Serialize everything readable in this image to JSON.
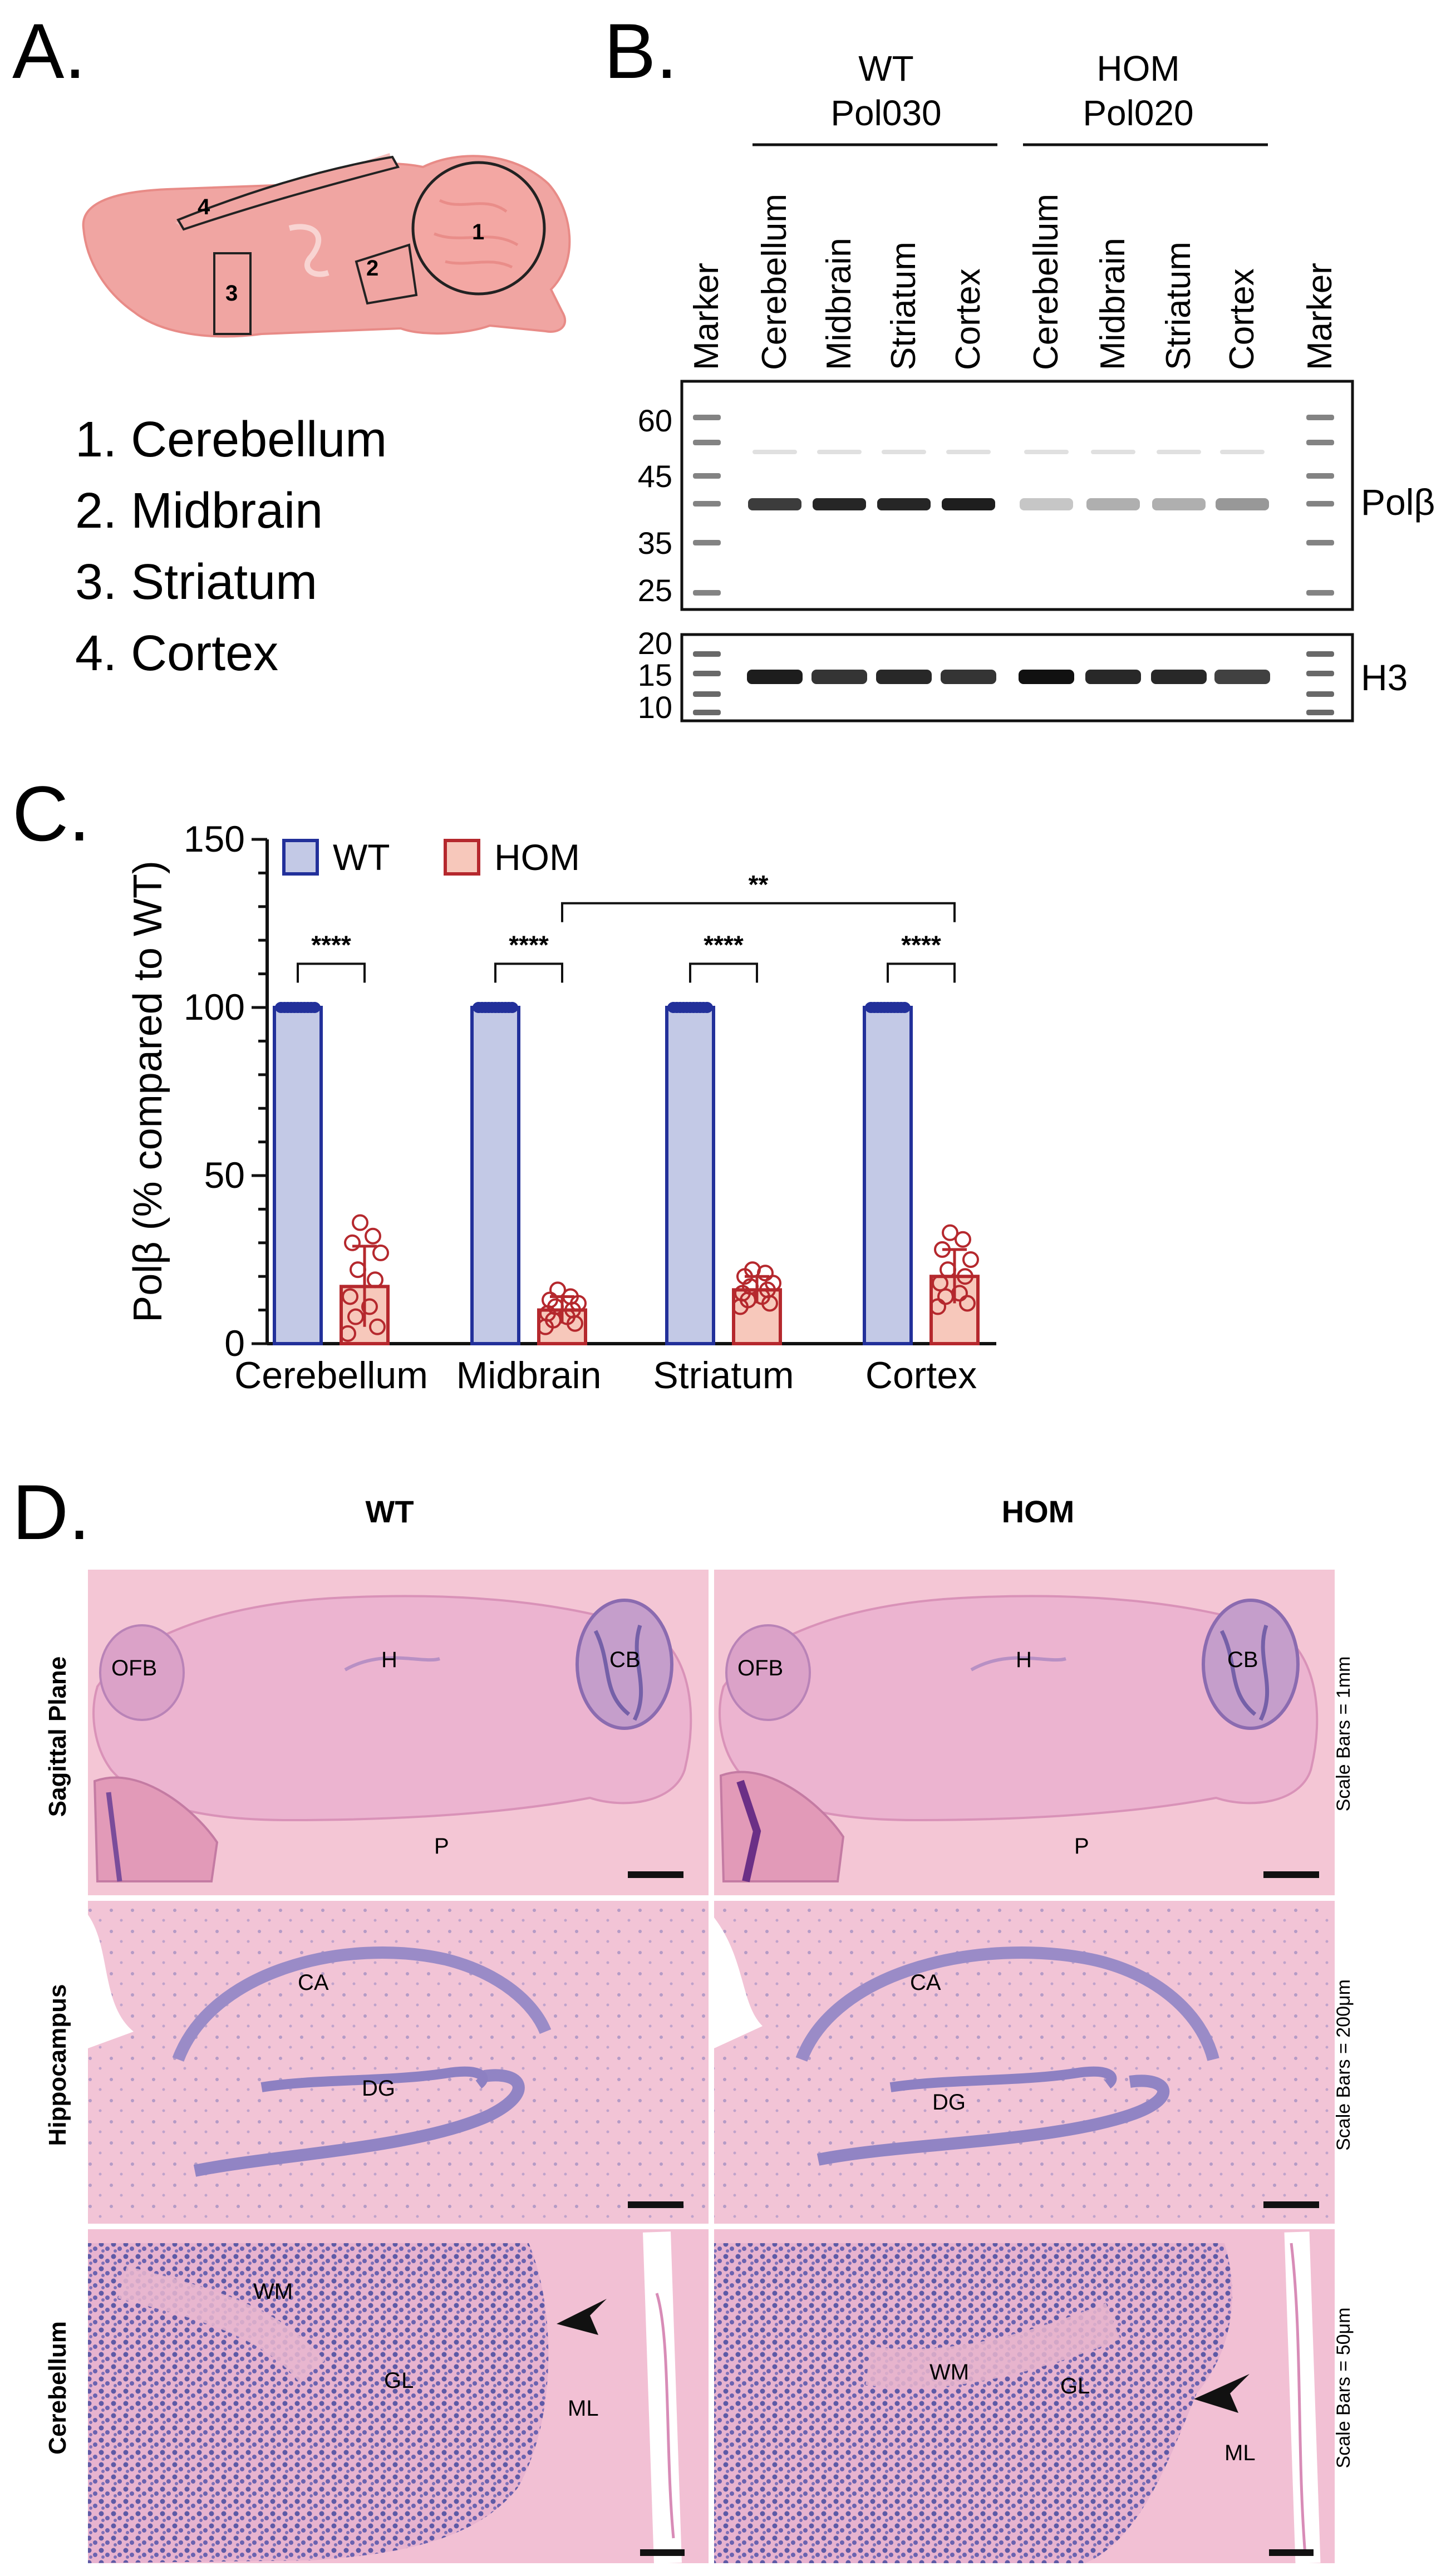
{
  "panels": {
    "a": "A.",
    "b": "B.",
    "c": "C.",
    "d": "D."
  },
  "panel_a": {
    "region_numbers": [
      "1",
      "2",
      "3",
      "4"
    ],
    "legend": [
      "1. Cerebellum",
      "2. Midbrain",
      "3. Striatum",
      "4. Cortex"
    ]
  },
  "panel_b": {
    "group_wt": [
      "WT",
      "Pol030"
    ],
    "group_hom": [
      "HOM",
      "Pol020"
    ],
    "lanes": [
      "Marker",
      "Cerebellum",
      "Midbrain",
      "Striatum",
      "Cortex",
      "Cerebellum",
      "Midbrain",
      "Striatum",
      "Cortex",
      "Marker"
    ],
    "top_blot_markers": [
      "60",
      "45",
      "35",
      "25"
    ],
    "bottom_blot_markers": [
      "20",
      "15",
      "10"
    ],
    "top_blot_label": "Polβ",
    "bottom_blot_label": "H3"
  },
  "chart_data": {
    "type": "bar",
    "categories": [
      "Cerebellum",
      "Midbrain",
      "Striatum",
      "Cortex"
    ],
    "series": [
      {
        "name": "WT",
        "values": [
          100,
          100,
          100,
          100
        ],
        "error": [
          0,
          0,
          0,
          0
        ],
        "points": [
          [
            100,
            100,
            100,
            100,
            100,
            100,
            100,
            100,
            100,
            100,
            100
          ],
          [
            100,
            100,
            100,
            100,
            100,
            100,
            100,
            100,
            100,
            100,
            100
          ],
          [
            100,
            100,
            100,
            100,
            100,
            100,
            100,
            100,
            100,
            100,
            100
          ],
          [
            100,
            100,
            100,
            100,
            100,
            100,
            100,
            100,
            100,
            100,
            100
          ]
        ]
      },
      {
        "name": "HOM",
        "values": [
          17,
          10,
          16,
          20
        ],
        "error": [
          12,
          4,
          4,
          8
        ],
        "points": [
          [
            36,
            32,
            30,
            27,
            22,
            19,
            14,
            11,
            8,
            5,
            3
          ],
          [
            16,
            14,
            13,
            12,
            11,
            10,
            9,
            8,
            7,
            6,
            5
          ],
          [
            22,
            21,
            20,
            18,
            17,
            16,
            15,
            14,
            13,
            12,
            11
          ],
          [
            33,
            31,
            28,
            25,
            22,
            20,
            18,
            15,
            14,
            12,
            11
          ]
        ]
      }
    ],
    "ylabel": "Polβ (% compared to WT)",
    "xlabel": "",
    "ylim": [
      0,
      150
    ],
    "yticks": [
      "0",
      "50",
      "100",
      "150"
    ],
    "significance": [
      {
        "between": "WT vs HOM, Cerebellum",
        "label": "****"
      },
      {
        "between": "WT vs HOM, Midbrain",
        "label": "****"
      },
      {
        "between": "WT vs HOM, Striatum",
        "label": "****"
      },
      {
        "between": "WT vs HOM, Cortex",
        "label": "****"
      },
      {
        "between": "HOM Midbrain vs HOM Cortex",
        "label": "**"
      }
    ],
    "legend_position": "top-left",
    "colors": {
      "WT_fill": "#c3c9e6",
      "WT_edge": "#22309a",
      "HOM_fill": "#f7c8bb",
      "HOM_edge": "#b5282d"
    }
  },
  "panel_d": {
    "col_headers": [
      "WT",
      "HOM"
    ],
    "row_labels": [
      "Sagittal Plane",
      "Hippocampus",
      "Cerebellum"
    ],
    "scale_bars": [
      "Scale Bars = 1mm",
      "Scale Bars = 200μm",
      "Scale Bars = 50μm"
    ],
    "row1_labels": {
      "ofb": "OFB",
      "h": "H",
      "cb": "CB",
      "p": "P"
    },
    "row2_labels": {
      "ca": "CA",
      "dg": "DG"
    },
    "row3_labels": {
      "wm": "WM",
      "gl": "GL",
      "ml": "ML"
    }
  }
}
